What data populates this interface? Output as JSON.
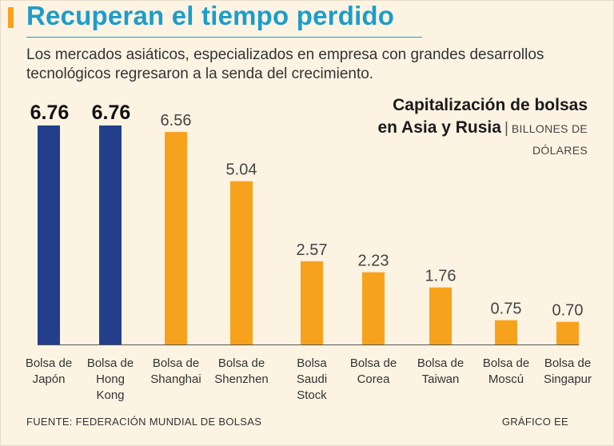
{
  "headline": "Recuperan el tiempo perdido",
  "subtitle": "Los mercados asiáticos, especializados en empresa con grandes desarrollos tecnológicos regresaron a la senda del crecimiento.",
  "chart_title": {
    "line1": "Capitalización de bolsas",
    "line2": "en Asia y Rusia",
    "separator": "|",
    "unit_line1": "BILLONES DE",
    "unit_line2": "DÓLARES"
  },
  "footer": {
    "source": "FUENTE: FEDERACIÓN MUNDIAL DE BOLSAS",
    "credit": "GRÁFICO EE"
  },
  "colors": {
    "highlight": "#233f8c",
    "base": "#f7a21d",
    "headline": "#1d9dc9",
    "background": "#fdf3e3"
  },
  "chart_data": {
    "type": "bar",
    "title": "Capitalización de bolsas en Asia y Rusia",
    "ylabel": "Billones de dólares",
    "xlabel": "",
    "ylim": [
      0,
      6.76
    ],
    "grid": false,
    "categories": [
      [
        "Bolsa de",
        "Japón"
      ],
      [
        "Bolsa de",
        "Hong",
        "Kong"
      ],
      [
        "Bolsa de",
        "Shanghai"
      ],
      [
        "Bolsa de",
        "Shenzhen"
      ],
      [
        "Bolsa",
        "Saudi",
        "Stock"
      ],
      [
        "Bolsa de",
        "Corea"
      ],
      [
        "Bolsa de",
        "Taiwan"
      ],
      [
        "Bolsa de",
        "Moscú"
      ],
      [
        "Bolsa de",
        "Singapur"
      ]
    ],
    "values": [
      6.76,
      6.76,
      6.56,
      5.04,
      2.57,
      2.23,
      1.76,
      0.75,
      0.7
    ],
    "value_labels": [
      "6.76",
      "6.76",
      "6.56",
      "5.04",
      "2.57",
      "2.23",
      "1.76",
      "0.75",
      "0.70"
    ],
    "highlighted": [
      true,
      true,
      false,
      false,
      false,
      false,
      false,
      false,
      false
    ]
  }
}
